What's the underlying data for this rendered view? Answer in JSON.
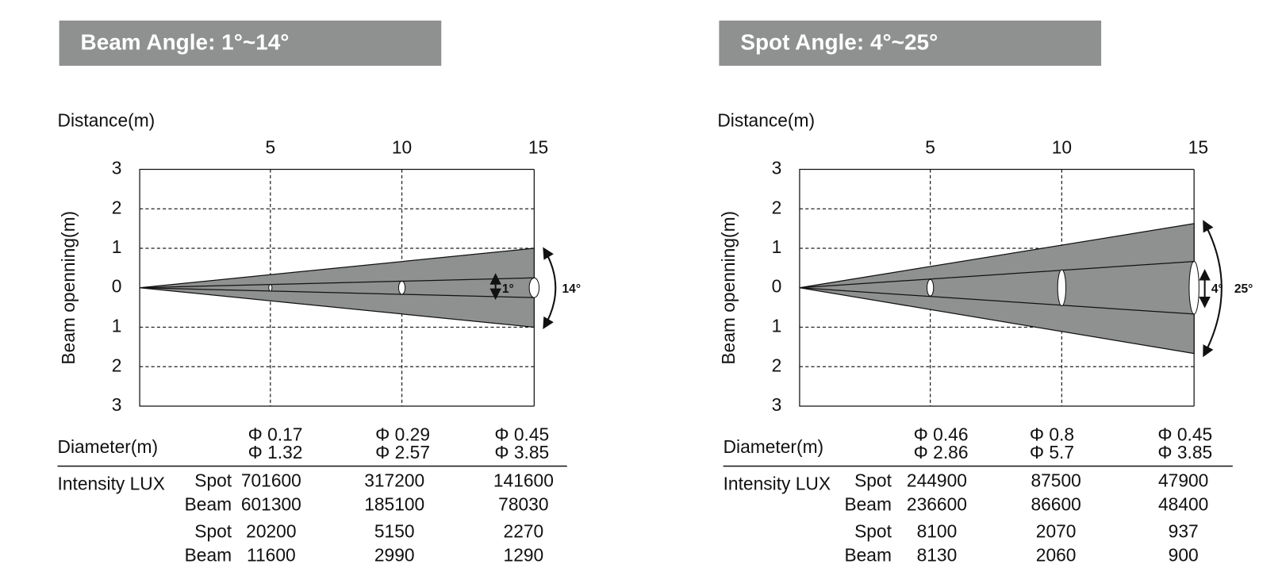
{
  "panels": [
    {
      "title": "Beam Angle: 1°~14°",
      "x_axis_label": "Distance(m)",
      "y_axis_label": "Beam openning(m)",
      "x_ticks": [
        "5",
        "10",
        "15"
      ],
      "y_ticks": [
        "3",
        "2",
        "1",
        "0",
        "1",
        "2",
        "3"
      ],
      "narrow_angle": "1°",
      "wide_angle": "14°",
      "diameter_label": "Diameter(m)",
      "diameters": [
        [
          "Φ 0.17",
          "Φ 1.32"
        ],
        [
          "Φ 0.29",
          "Φ 2.57"
        ],
        [
          "Φ 0.45",
          "Φ 3.85"
        ]
      ],
      "intensity_label": "Intensity LUX",
      "intensity_rows": [
        {
          "name": "Spot",
          "values": [
            "701600",
            "317200",
            "141600"
          ]
        },
        {
          "name": "Beam",
          "values": [
            "601300",
            "185100",
            "78030"
          ]
        },
        {
          "name": "Spot",
          "values": [
            "20200",
            "5150",
            "2270"
          ]
        },
        {
          "name": "Beam",
          "values": [
            "11600",
            "2990",
            "1290"
          ]
        }
      ]
    },
    {
      "title": "Spot Angle: 4°~25°",
      "x_axis_label": "Distance(m)",
      "y_axis_label": "Beam openning(m)",
      "x_ticks": [
        "5",
        "10",
        "15"
      ],
      "y_ticks": [
        "3",
        "2",
        "1",
        "0",
        "1",
        "2",
        "3"
      ],
      "narrow_angle": "4°",
      "wide_angle": "25°",
      "diameter_label": "Diameter(m)",
      "diameters": [
        [
          "Φ 0.46",
          "Φ 2.86"
        ],
        [
          "Φ 0.8",
          "Φ 5.7"
        ],
        [
          "Φ 0.45",
          "Φ 3.85"
        ]
      ],
      "intensity_label": "Intensity LUX",
      "intensity_rows": [
        {
          "name": "Spot",
          "values": [
            "244900",
            "87500",
            "47900"
          ]
        },
        {
          "name": "Beam",
          "values": [
            "236600",
            "86600",
            "48400"
          ]
        },
        {
          "name": "Spot",
          "values": [
            "8100",
            "2070",
            "937"
          ]
        },
        {
          "name": "Beam",
          "values": [
            "8130",
            "2060",
            "900"
          ]
        }
      ]
    }
  ]
}
